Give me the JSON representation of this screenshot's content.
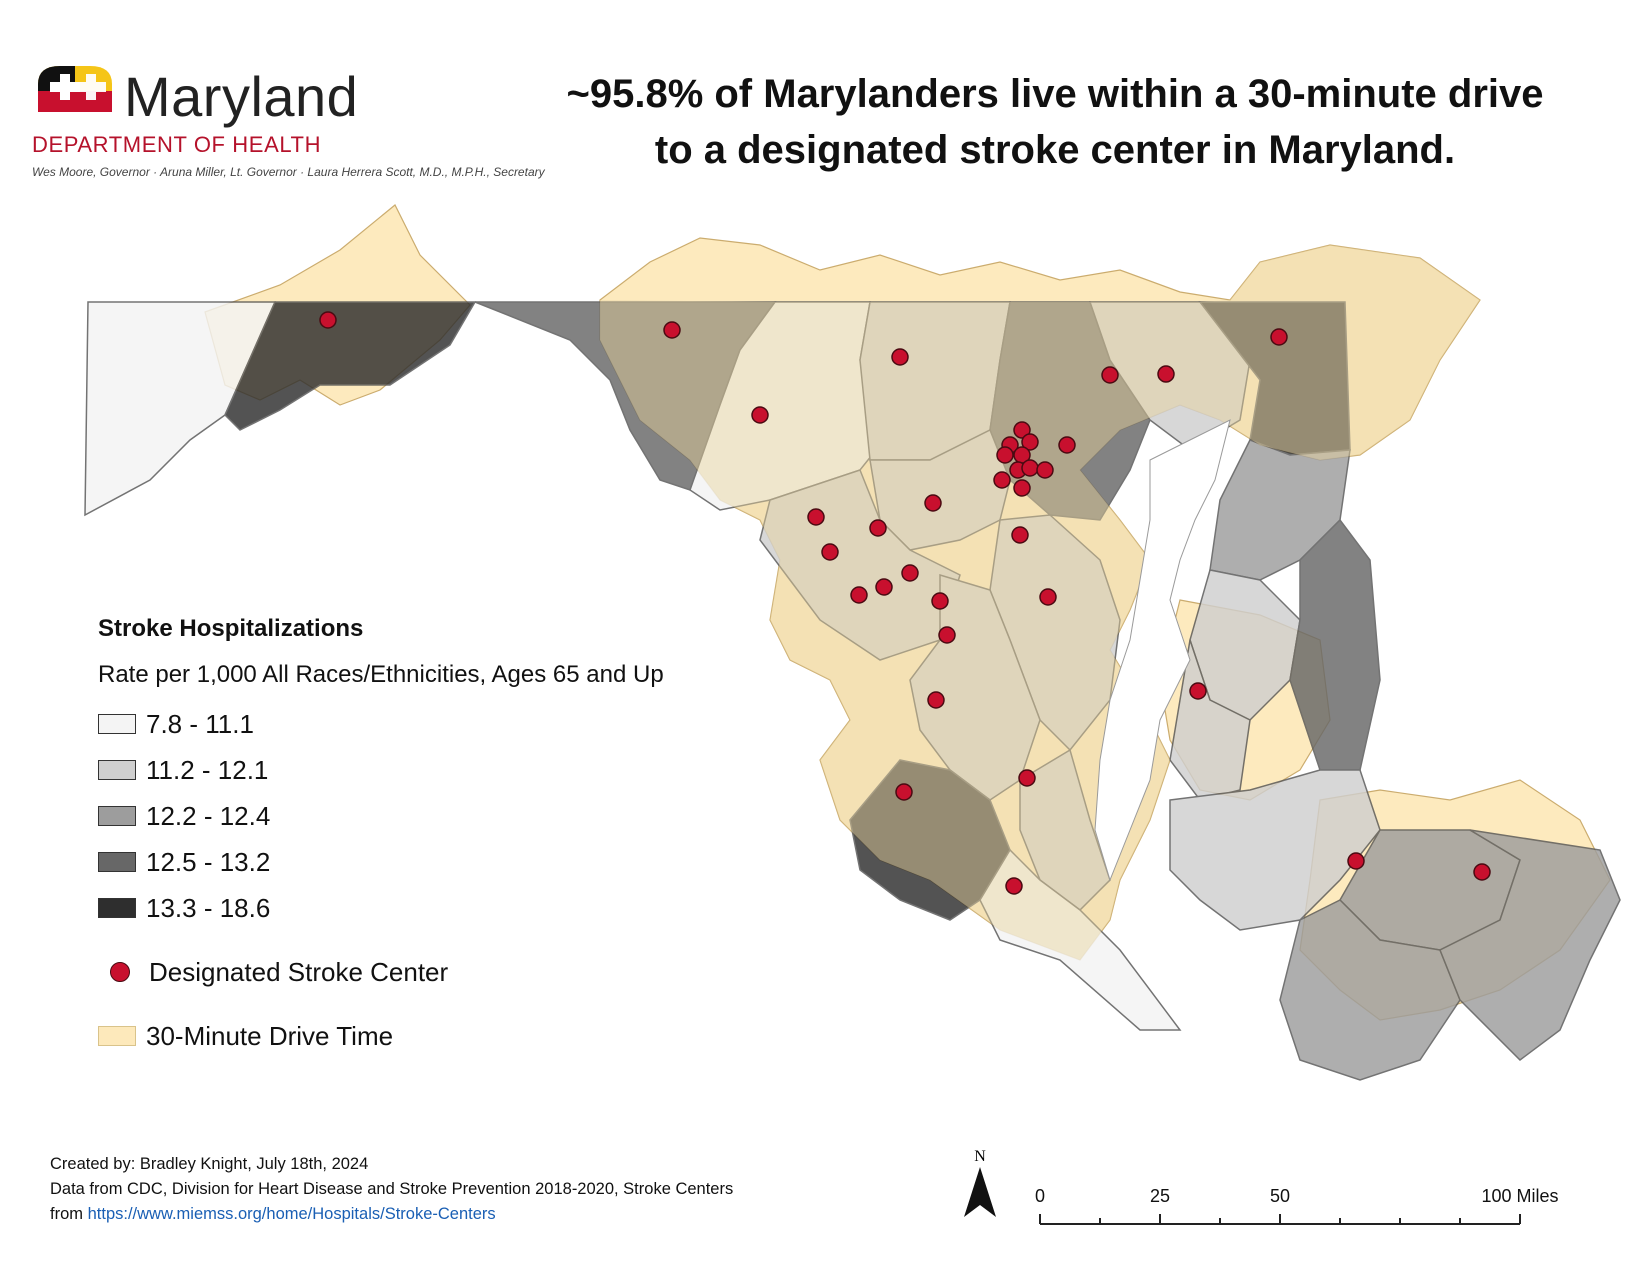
{
  "header": {
    "logo": {
      "name": "Maryland",
      "department": "DEPARTMENT OF HEALTH",
      "officials": "Wes Moore, Governor · Aruna Miller, Lt. Governor · Laura Herrera Scott, M.D., M.P.H., Secretary",
      "icon": "maryland-flag-icon"
    },
    "headline_line1": "~95.8% of Marylanders live within a 30-minute drive",
    "headline_line2": "to a designated stroke center in Maryland."
  },
  "legend": {
    "title": "Stroke Hospitalizations",
    "subtitle": "Rate per 1,000 All Races/Ethnicities, Ages 65 and Up",
    "classes": [
      {
        "label": "7.8 - 11.1",
        "color": "#f4f4f4"
      },
      {
        "label": "11.2 - 12.1",
        "color": "#cfcfcf"
      },
      {
        "label": "12.2 - 12.4",
        "color": "#9d9d9d"
      },
      {
        "label": "12.5 - 13.2",
        "color": "#676767"
      },
      {
        "label": "13.3 - 18.6",
        "color": "#2e2e2e"
      }
    ],
    "stroke_center_label": "Designated Stroke Center",
    "stroke_center_color": "#c8102e",
    "drive_time_label": "30-Minute Drive Time",
    "drive_time_color": "#fde9bb"
  },
  "credits": {
    "line1": "Created by: Bradley Knight, July 18th, 2024",
    "line2": "Data from CDC, Division for Heart Disease and Stroke Prevention 2018-2020, Stroke Centers",
    "line3_prefix": "from ",
    "line3_link": "https://www.miemss.org/home/Hospitals/Stroke-Centers"
  },
  "north_arrow": {
    "label": "N",
    "icon": "north-arrow-icon"
  },
  "scale_bar": {
    "labels": [
      "0",
      "25",
      "50",
      "100 Miles"
    ],
    "values_miles": [
      0,
      25,
      50,
      100
    ]
  }
}
